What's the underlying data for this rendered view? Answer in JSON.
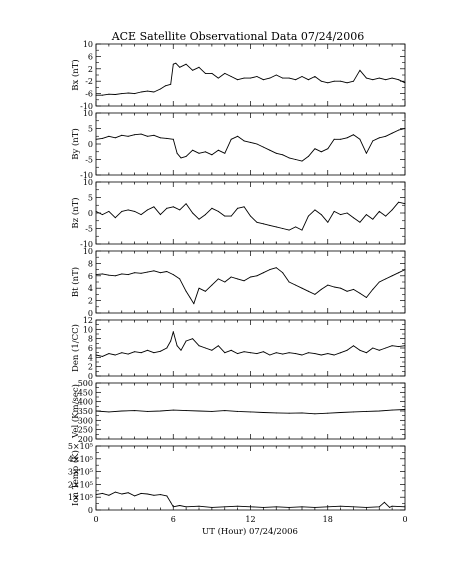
{
  "chart_data": {
    "type": "line",
    "title": "ACE Satellite Observational Data   07/24/2006",
    "xlabel": "UT (Hour)   07/24/2006",
    "x_ticks": [
      "0",
      "6",
      "12",
      "18",
      "0"
    ],
    "xlim": [
      0,
      24
    ],
    "grid": false,
    "line_color": "#000000",
    "panels": [
      {
        "ylabel": "Bx (nT)",
        "ylim": [
          -10,
          10
        ],
        "y_ticks": [
          "-10",
          "-6",
          "-2",
          "2",
          "6",
          "10"
        ],
        "y_tick_values": [
          -10,
          -6,
          -2,
          2,
          6,
          10
        ],
        "series": [
          {
            "x": [
              0,
              0.5,
              1,
              1.5,
              2,
              2.5,
              3,
              3.5,
              4,
              4.5,
              5,
              5.4,
              5.8,
              6.0,
              6.2,
              6.5,
              7,
              7.5,
              8,
              8.5,
              9,
              9.5,
              10,
              10.5,
              11,
              11.5,
              12,
              12.5,
              13,
              13.5,
              14,
              14.5,
              15,
              15.5,
              16,
              16.5,
              17,
              17.5,
              18,
              18.5,
              19,
              19.5,
              20,
              20.5,
              21,
              21.5,
              22,
              22.5,
              23,
              23.5,
              24
            ],
            "y": [
              -6.5,
              -6.5,
              -6.2,
              -6.3,
              -6,
              -5.8,
              -6,
              -5.5,
              -5.2,
              -5.5,
              -4.5,
              -3.5,
              -3,
              3.5,
              3.8,
              2.5,
              3.5,
              1.5,
              2.5,
              0.5,
              0.5,
              -1,
              0.5,
              -0.5,
              -1.5,
              -1,
              -1,
              -0.5,
              -1.5,
              -1,
              0,
              -1,
              -1,
              -1.5,
              -0.5,
              -1.5,
              -0.5,
              -2,
              -2.5,
              -2,
              -2,
              -2.5,
              -2,
              1.5,
              -1,
              -1.5,
              -1,
              -1.5,
              -1,
              -1.5,
              -2.5
            ]
          }
        ]
      },
      {
        "ylabel": "By (nT)",
        "ylim": [
          -10,
          10
        ],
        "y_ticks": [
          "-10",
          "-5",
          "0",
          "5",
          "10"
        ],
        "y_tick_values": [
          -10,
          -5,
          0,
          5,
          10
        ],
        "series": [
          {
            "x": [
              0,
              0.5,
              1,
              1.5,
              2,
              2.5,
              3,
              3.5,
              4,
              4.5,
              5,
              5.5,
              6,
              6.3,
              6.6,
              7,
              7.5,
              8,
              8.5,
              9,
              9.5,
              10,
              10.5,
              11,
              11.5,
              12,
              12.5,
              13,
              13.5,
              14,
              14.5,
              15,
              15.5,
              16,
              16.5,
              17,
              17.5,
              18,
              18.5,
              19,
              19.5,
              20,
              20.5,
              21,
              21.5,
              22,
              22.5,
              23,
              23.5,
              24
            ],
            "y": [
              1.5,
              1.8,
              2.5,
              2,
              2.8,
              2.5,
              3,
              3.2,
              2.5,
              2.8,
              2,
              1.8,
              1.5,
              -3,
              -4.5,
              -4,
              -2,
              -3,
              -2.5,
              -3.5,
              -2,
              -3,
              1.5,
              2.5,
              1,
              0.5,
              0,
              -1,
              -2,
              -3,
              -3.5,
              -4.5,
              -5,
              -5.5,
              -4,
              -1.5,
              -2.5,
              -1.5,
              1.5,
              1.5,
              2,
              3,
              1.5,
              -3,
              1,
              2,
              2.5,
              3.5,
              4.5,
              5
            ]
          }
        ]
      },
      {
        "ylabel": "Bz (nT)",
        "ylim": [
          -10,
          10
        ],
        "y_ticks": [
          "-10",
          "-5",
          "0",
          "5",
          "10"
        ],
        "y_tick_values": [
          -10,
          -5,
          0,
          5,
          10
        ],
        "series": [
          {
            "x": [
              0,
              0.5,
              1,
              1.5,
              2,
              2.5,
              3,
              3.5,
              4,
              4.5,
              5,
              5.5,
              6,
              6.5,
              7,
              7.5,
              8,
              8.5,
              9,
              9.5,
              10,
              10.5,
              11,
              11.5,
              12,
              12.5,
              13,
              13.5,
              14,
              14.5,
              15,
              15.5,
              16,
              16.5,
              17,
              17.5,
              18,
              18.5,
              19,
              19.5,
              20,
              20.5,
              21,
              21.5,
              22,
              22.5,
              23,
              23.5,
              24
            ],
            "y": [
              0.5,
              -0.5,
              0.5,
              -1.5,
              0.5,
              1,
              0.5,
              -0.5,
              1,
              2,
              -0.5,
              1.5,
              2,
              1,
              3,
              0,
              -2,
              -0.5,
              1.5,
              0.5,
              -1,
              -1,
              1.5,
              2,
              -1,
              -3,
              -3.5,
              -4,
              -4.5,
              -5,
              -5.5,
              -4.5,
              -5.5,
              -1,
              1,
              -0.5,
              -3,
              0.5,
              -0.5,
              0,
              -1.5,
              -3,
              -0.5,
              -2,
              0.5,
              -1,
              1,
              3.5,
              3
            ]
          }
        ]
      },
      {
        "ylabel": "Bt (nT)",
        "ylim": [
          0,
          10
        ],
        "y_ticks": [
          "0",
          "2",
          "4",
          "6",
          "8",
          "10"
        ],
        "y_tick_values": [
          0,
          2,
          4,
          6,
          8,
          10
        ],
        "series": [
          {
            "x": [
              0,
              0.5,
              1,
              1.5,
              2,
              2.5,
              3,
              3.5,
              4,
              4.5,
              5,
              5.5,
              6,
              6.5,
              7,
              7.3,
              7.6,
              8,
              8.5,
              9,
              9.5,
              10,
              10.5,
              11,
              11.5,
              12,
              12.5,
              13,
              13.5,
              14,
              14.5,
              15,
              15.5,
              16,
              16.5,
              17,
              17.5,
              18,
              18.5,
              19,
              19.5,
              20,
              20.5,
              21,
              21.5,
              22,
              22.5,
              23,
              23.5,
              24
            ],
            "y": [
              6.2,
              6.3,
              6.1,
              6,
              6.3,
              6.2,
              6.5,
              6.4,
              6.6,
              6.8,
              6.5,
              6.7,
              6.2,
              5.5,
              3.5,
              2.5,
              1.5,
              4,
              3.5,
              4.5,
              5.5,
              5,
              5.8,
              5.5,
              5.2,
              5.8,
              6,
              6.5,
              7,
              7.3,
              6.5,
              5,
              4.5,
              4,
              3.5,
              3,
              3.8,
              4.5,
              4.2,
              4,
              3.5,
              3.8,
              3.2,
              2.5,
              3.8,
              5,
              5.5,
              6,
              6.5,
              7
            ]
          }
        ]
      },
      {
        "ylabel": "Den (1/CC)",
        "ylim": [
          0,
          12
        ],
        "y_ticks": [
          "0",
          "2",
          "4",
          "6",
          "8",
          "10",
          "12"
        ],
        "y_tick_values": [
          0,
          2,
          4,
          6,
          8,
          10,
          12
        ],
        "series": [
          {
            "x": [
              0,
              0.5,
              1,
              1.5,
              2,
              2.5,
              3,
              3.5,
              4,
              4.5,
              5,
              5.5,
              5.8,
              6,
              6.3,
              6.6,
              7,
              7.5,
              8,
              8.5,
              9,
              9.5,
              10,
              10.5,
              11,
              11.5,
              12,
              12.5,
              13,
              13.5,
              14,
              14.5,
              15,
              15.5,
              16,
              16.5,
              17,
              17.5,
              18,
              18.5,
              19,
              19.5,
              20,
              20.5,
              21,
              21.5,
              22,
              22.5,
              23,
              23.5,
              24
            ],
            "y": [
              4.5,
              4.2,
              4.8,
              4.5,
              5,
              4.7,
              5.2,
              5,
              5.5,
              5,
              5.3,
              6,
              7.5,
              9.5,
              6.5,
              5.5,
              7.5,
              8,
              6.5,
              6,
              5.5,
              6.5,
              5,
              5.5,
              4.8,
              5.2,
              5,
              4.8,
              5.2,
              4.5,
              5,
              4.7,
              5,
              4.8,
              4.5,
              5,
              4.8,
              4.5,
              4.8,
              4.5,
              5,
              5.5,
              6.5,
              5.5,
              5,
              6,
              5.5,
              6,
              6.5,
              6.3,
              6.5
            ]
          }
        ]
      },
      {
        "ylabel": "Vel (Km/sec)",
        "ylim": [
          200,
          500
        ],
        "y_ticks": [
          "200",
          "250",
          "300",
          "350",
          "400",
          "450",
          "500"
        ],
        "y_tick_values": [
          200,
          250,
          300,
          350,
          400,
          450,
          500
        ],
        "series": [
          {
            "x": [
              0,
              1,
              2,
              3,
              4,
              5,
              6,
              7,
              8,
              9,
              10,
              11,
              12,
              13,
              14,
              15,
              16,
              17,
              18,
              19,
              20,
              21,
              22,
              23,
              24
            ],
            "y": [
              350,
              345,
              350,
              352,
              348,
              350,
              355,
              352,
              350,
              348,
              352,
              348,
              345,
              342,
              340,
              338,
              340,
              335,
              338,
              342,
              345,
              348,
              350,
              355,
              358
            ]
          }
        ]
      },
      {
        "ylabel": "Ion Temp (K)",
        "ylim": [
          0,
          500000
        ],
        "y_ticks": [
          "0",
          "1×10⁵",
          "2×10⁵",
          "3×10⁵",
          "4×10⁵",
          "5×10⁵"
        ],
        "y_tick_values": [
          0,
          100000,
          200000,
          300000,
          400000,
          500000
        ],
        "series": [
          {
            "x": [
              0,
              0.5,
              1,
              1.5,
              2,
              2.5,
              3,
              3.5,
              4,
              4.5,
              5,
              5.5,
              5.8,
              6,
              6.5,
              7,
              8,
              9,
              10,
              11,
              12,
              13,
              14,
              15,
              16,
              17,
              18,
              19,
              20,
              21,
              22,
              22.4,
              22.8,
              23,
              24
            ],
            "y": [
              120000,
              130000,
              115000,
              140000,
              125000,
              135000,
              110000,
              130000,
              125000,
              115000,
              120000,
              110000,
              60000,
              25000,
              35000,
              25000,
              30000,
              20000,
              25000,
              30000,
              25000,
              20000,
              25000,
              20000,
              25000,
              20000,
              25000,
              30000,
              25000,
              20000,
              25000,
              60000,
              20000,
              30000,
              25000
            ]
          }
        ]
      }
    ]
  }
}
